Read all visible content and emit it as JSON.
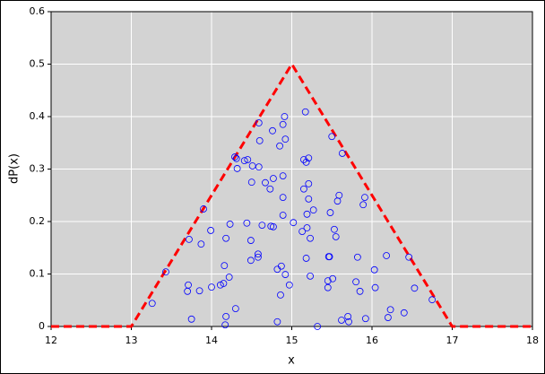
{
  "chart_data": {
    "type": "scatter",
    "xlabel": "x",
    "ylabel": "dP(x)",
    "xlim": [
      12,
      18
    ],
    "ylim": [
      0,
      0.6
    ],
    "xticks": [
      12,
      13,
      14,
      15,
      16,
      17,
      18
    ],
    "yticks": [
      0,
      0.1,
      0.2,
      0.3,
      0.4,
      0.5,
      0.6
    ],
    "grid": true,
    "series": [
      {
        "type": "line",
        "color": "#ff0000",
        "dashed": true,
        "x": [
          12,
          13,
          15,
          17,
          18
        ],
        "values": [
          0,
          0,
          0.5,
          0,
          0
        ]
      },
      {
        "type": "scatter",
        "color": "#0000ff",
        "x": [
          13.26,
          13.43,
          13.72,
          13.71,
          13.7,
          13.75,
          13.85,
          13.87,
          13.9,
          13.99,
          14,
          14.11,
          14.15,
          14.16,
          14.18,
          14.18,
          14.17,
          14.22,
          14.23,
          14.3,
          14.29,
          14.31,
          14.32,
          14.41,
          14.44,
          14.45,
          14.49,
          14.49,
          14.5,
          14.51,
          14.58,
          14.58,
          14.59,
          14.59,
          14.6,
          14.63,
          14.67,
          14.73,
          14.74,
          14.76,
          14.77,
          14.77,
          14.82,
          14.82,
          14.85,
          14.86,
          14.87,
          14.89,
          14.89,
          14.89,
          14.89,
          14.91,
          14.92,
          14.92,
          14.97,
          15.02,
          15.13,
          15.15,
          15.15,
          15.17,
          15.18,
          15.19,
          15.21,
          15.21,
          15.18,
          15.19,
          15.21,
          15.23,
          15.23,
          15.27,
          15.32,
          15.45,
          15.45,
          15.46,
          15.47,
          15.48,
          15.5,
          15.51,
          15.53,
          15.55,
          15.57,
          15.59,
          15.62,
          15.63,
          15.7,
          15.71,
          15.8,
          15.82,
          15.85,
          15.89,
          15.91,
          15.92,
          16.03,
          16.04,
          16.18,
          16.2,
          16.23,
          16.4,
          16.46,
          16.53,
          16.75
        ],
        "values": [
          0.044,
          0.104,
          0.166,
          0.079,
          0.067,
          0.014,
          0.068,
          0.157,
          0.224,
          0.183,
          0.075,
          0.079,
          0.082,
          0.116,
          0.168,
          0.019,
          0.003,
          0.094,
          0.195,
          0.034,
          0.323,
          0.32,
          0.301,
          0.316,
          0.197,
          0.318,
          0.164,
          0.126,
          0.275,
          0.306,
          0.138,
          0.132,
          0.388,
          0.304,
          0.354,
          0.193,
          0.274,
          0.262,
          0.191,
          0.373,
          0.282,
          0.19,
          0.009,
          0.109,
          0.344,
          0.06,
          0.115,
          0.287,
          0.385,
          0.246,
          0.212,
          0.4,
          0.357,
          0.099,
          0.079,
          0.198,
          0.181,
          0.262,
          0.318,
          0.409,
          0.313,
          0.188,
          0.321,
          0.243,
          0.13,
          0.214,
          0.272,
          0.168,
          0.096,
          0.222,
          0,
          0.087,
          0.074,
          0.133,
          0.133,
          0.217,
          0.362,
          0.091,
          0.185,
          0.171,
          0.239,
          0.25,
          0.012,
          0.33,
          0.019,
          0.009,
          0.085,
          0.132,
          0.067,
          0.232,
          0.246,
          0.015,
          0.108,
          0.074,
          0.135,
          0.017,
          0.032,
          0.026,
          0.132,
          0.073,
          0.051
        ]
      }
    ]
  }
}
